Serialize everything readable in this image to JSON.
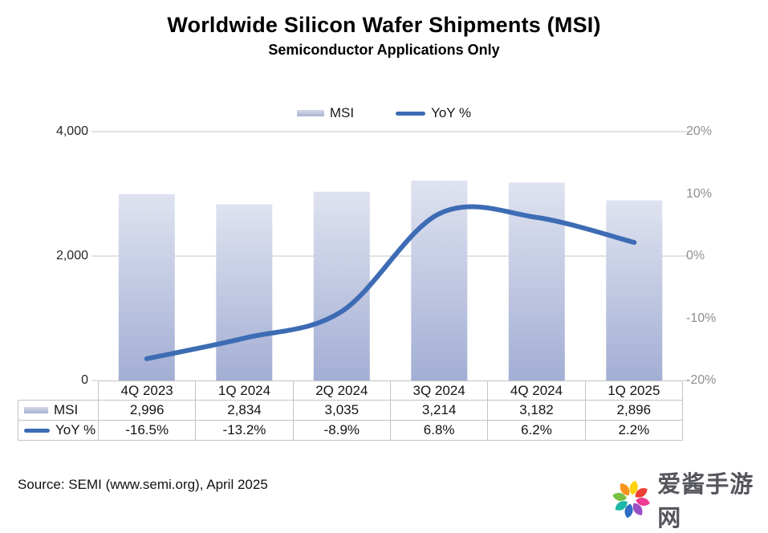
{
  "title": "Worldwide Silicon Wafer Shipments (MSI)",
  "subtitle": "Semiconductor Applications Only",
  "source": "Source: SEMI (www.semi.org), April 2025",
  "chart_data": {
    "type": "bar+line combo",
    "categories": [
      "4Q 2023",
      "1Q 2024",
      "2Q 2024",
      "3Q 2024",
      "4Q 2024",
      "1Q 2025"
    ],
    "series": [
      {
        "name": "MSI",
        "type": "bar",
        "axis": "left",
        "values": [
          2996,
          2834,
          3035,
          3214,
          3182,
          2896
        ],
        "labels": [
          "2,996",
          "2,834",
          "3,035",
          "3,214",
          "3,182",
          "2,896"
        ]
      },
      {
        "name": "YoY %",
        "type": "line",
        "axis": "right",
        "values": [
          -16.5,
          -13.2,
          -8.9,
          6.8,
          6.2,
          2.2
        ],
        "labels": [
          "-16.5%",
          "-13.2%",
          "-8.9%",
          "6.8%",
          "6.2%",
          "2.2%"
        ]
      }
    ],
    "left_axis": {
      "min": 0,
      "max": 4000,
      "ticks": [
        {
          "label": "4,000",
          "value": 4000
        },
        {
          "label": "2,000",
          "value": 2000
        },
        {
          "label": "0",
          "value": 0
        }
      ]
    },
    "right_axis": {
      "min": -20,
      "max": 20,
      "ticks": [
        {
          "label": "20%",
          "value": 20
        },
        {
          "label": "10%",
          "value": 10
        },
        {
          "label": "0%",
          "value": 0
        },
        {
          "label": "-10%",
          "value": -10
        },
        {
          "label": "-20%",
          "value": -20
        }
      ]
    },
    "legend_position": "top",
    "grid": "horizontal at primary-axis ticks",
    "data_table_shown": true,
    "colors": {
      "bar_top": "#dfe3f0",
      "bar_bottom": "#a3aed4",
      "line": "#3d6cb4",
      "grid": "#d9d9d9",
      "axis": "#bfbfbf",
      "table_border": "#c3c3c3",
      "right_axis_text": "#8f8f8f"
    }
  },
  "watermark": {
    "text": "爱酱手游网",
    "text_color": "#54565c",
    "petal_colors": [
      "#ffd20a",
      "#ee4035",
      "#ed3d95",
      "#9b4fc4",
      "#2f6dc6",
      "#1cb8a6",
      "#7ac143",
      "#f7941e"
    ]
  }
}
